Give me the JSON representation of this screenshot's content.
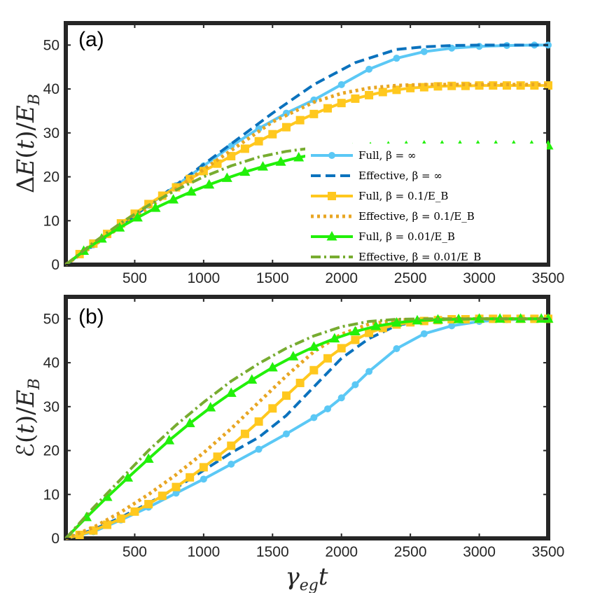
{
  "chart_data": [
    {
      "type": "line",
      "panel_label": "(a)",
      "ylabel": "ΔE(t)/E_B",
      "xlabel": "",
      "xlim": [
        0,
        3500
      ],
      "ylim": [
        0,
        55
      ],
      "xticks": [
        "500",
        "1000",
        "1500",
        "2000",
        "2500",
        "3000",
        "3500"
      ],
      "yticks": [
        "0",
        "10",
        "20",
        "30",
        "40",
        "50"
      ],
      "legend": "bottom-right",
      "series": [
        {
          "name": "Full, β = ∞",
          "color": "#5BC8F5",
          "style": "solid",
          "marker": "circle",
          "x": [
            0,
            200,
            400,
            600,
            800,
            1000,
            1200,
            1400,
            1600,
            1800,
            2000,
            2200,
            2400,
            2600,
            2800,
            3000,
            3200,
            3400,
            3500
          ],
          "y": [
            0,
            4.5,
            9,
            13.5,
            18,
            22.5,
            27,
            31,
            34.5,
            37.5,
            41,
            44.5,
            47,
            48.5,
            49.3,
            49.7,
            49.9,
            50,
            50
          ]
        },
        {
          "name": "Effective, β = ∞",
          "color": "#0B72BD",
          "style": "dash",
          "marker": "none",
          "x": [
            0,
            300,
            600,
            900,
            1200,
            1500,
            1800,
            2100,
            2400,
            2600,
            2800,
            3000,
            3300,
            3500
          ],
          "y": [
            0,
            6.5,
            13.5,
            20.5,
            27.5,
            34.5,
            41,
            46,
            49,
            49.6,
            49.9,
            50,
            50,
            50
          ]
        },
        {
          "name": "Full, β = 0.1/E_B",
          "color": "#FFC81E",
          "style": "solid",
          "marker": "square",
          "x": [
            0,
            100,
            200,
            300,
            400,
            500,
            600,
            700,
            800,
            900,
            1000,
            1100,
            1200,
            1300,
            1400,
            1500,
            1600,
            1700,
            1800,
            1900,
            2000,
            2100,
            2200,
            2300,
            2400,
            2500,
            2600,
            2700,
            2800,
            2900,
            3000,
            3100,
            3200,
            3300,
            3400,
            3500
          ],
          "y": [
            0,
            2.4,
            4.8,
            7,
            9.4,
            11.6,
            13.8,
            15.7,
            17.6,
            19.5,
            21.3,
            23,
            24.7,
            26.4,
            28.1,
            29.7,
            31.3,
            32.9,
            34.3,
            35.6,
            36.8,
            37.8,
            38.6,
            39.3,
            39.8,
            40.2,
            40.4,
            40.6,
            40.7,
            40.7,
            40.8,
            40.8,
            40.8,
            40.8,
            40.8,
            40.8
          ]
        },
        {
          "name": "Effective, β = 0.1/E_B",
          "color": "#E8A623",
          "style": "dot",
          "marker": "none",
          "x": [
            0,
            300,
            600,
            900,
            1200,
            1500,
            1800,
            2000,
            2200,
            2400,
            2600,
            2800,
            3000,
            3200,
            3500
          ],
          "y": [
            0,
            6.5,
            13,
            19.5,
            26,
            32.5,
            37,
            39,
            40.2,
            40.8,
            41,
            41,
            41,
            41,
            41
          ]
        },
        {
          "name": "Full, β = 0.01/E_B",
          "color": "#22F00A",
          "style": "solid",
          "marker": "triangle",
          "x": [
            0,
            130,
            260,
            390,
            520,
            650,
            780,
            910,
            1040,
            1170,
            1300,
            1430,
            1560,
            1690,
            1820,
            1950,
            2080,
            2210,
            2340,
            2470,
            2600,
            2730,
            2860,
            2990,
            3120,
            3250,
            3380,
            3500
          ],
          "y": [
            0,
            3.1,
            5.9,
            8.4,
            10.7,
            12.9,
            14.8,
            16.6,
            18.2,
            19.7,
            21.1,
            22.3,
            23.4,
            24.4,
            25.2,
            25.9,
            26.4,
            26.7,
            26.9,
            27,
            27.1,
            27.1,
            27.1,
            27.1,
            27.1,
            27.1,
            27.1,
            27.1
          ]
        },
        {
          "name": "Effective, β = 0.01/E_B",
          "color": "#77AC30",
          "style": "dashdot",
          "marker": "none",
          "x": [
            0,
            200,
            400,
            600,
            800,
            1000,
            1200,
            1400,
            1600,
            1800,
            2000,
            2200,
            2400,
            2700,
            3000,
            3500
          ],
          "y": [
            0,
            5,
            9.5,
            13.5,
            17,
            20,
            22.5,
            24.5,
            25.8,
            26.6,
            27,
            27.1,
            27.1,
            27.1,
            27.1,
            27.1
          ]
        }
      ]
    },
    {
      "type": "line",
      "panel_label": "(b)",
      "ylabel": "ℰ(t)/E_B",
      "xlabel": "γ_eg t",
      "xlim": [
        0,
        3500
      ],
      "ylim": [
        0,
        55
      ],
      "xticks": [
        "500",
        "1000",
        "1500",
        "2000",
        "2500",
        "3000",
        "3500"
      ],
      "yticks": [
        "0",
        "10",
        "20",
        "30",
        "40",
        "50"
      ],
      "series": [
        {
          "name": "Full, β = ∞",
          "color": "#5BC8F5",
          "style": "solid",
          "marker": "circle",
          "x": [
            0,
            200,
            400,
            600,
            800,
            1000,
            1200,
            1400,
            1600,
            1800,
            1900,
            2000,
            2100,
            2200,
            2400,
            2600,
            2800,
            3000,
            3200,
            3400,
            3500
          ],
          "y": [
            0,
            1.5,
            4.2,
            7.1,
            10.3,
            13.5,
            16.9,
            20.3,
            23.8,
            27.5,
            29.5,
            32,
            35,
            38,
            43.2,
            46.6,
            48.4,
            49.4,
            49.8,
            50,
            50
          ]
        },
        {
          "name": "Effective, β = ∞",
          "color": "#0B72BD",
          "style": "dash",
          "marker": "none",
          "x": [
            0,
            200,
            400,
            600,
            800,
            1000,
            1200,
            1400,
            1600,
            1800,
            2000,
            2200,
            2400,
            2600,
            2800,
            3000,
            3500
          ],
          "y": [
            0,
            2,
            4.8,
            8,
            11.5,
            15.5,
            19.5,
            23,
            28,
            34.5,
            41,
            45.5,
            48.5,
            49.6,
            49.9,
            50,
            50
          ]
        },
        {
          "name": "Full, β = 0.1/E_B",
          "color": "#FFC81E",
          "style": "solid",
          "marker": "square",
          "x": [
            0,
            100,
            200,
            300,
            400,
            500,
            600,
            700,
            800,
            900,
            1000,
            1100,
            1200,
            1300,
            1400,
            1500,
            1600,
            1700,
            1800,
            1900,
            2000,
            2100,
            2200,
            2300,
            2400,
            2500,
            2600,
            2700,
            2800,
            2900,
            3000,
            3100,
            3200,
            3300,
            3400,
            3500
          ],
          "y": [
            0,
            0.8,
            1.8,
            3.1,
            4.5,
            6.1,
            7.8,
            9.7,
            11.7,
            13.9,
            16.2,
            18.6,
            21.1,
            23.8,
            26.6,
            29.6,
            32.5,
            35.4,
            38.3,
            41,
            43.3,
            45.2,
            46.8,
            47.9,
            48.7,
            49.2,
            49.5,
            49.7,
            49.9,
            49.9,
            50,
            50,
            50,
            50,
            50,
            50
          ]
        },
        {
          "name": "Effective, β = 0.1/E_B",
          "color": "#E8A623",
          "style": "dot",
          "marker": "none",
          "x": [
            0,
            200,
            400,
            600,
            800,
            1000,
            1200,
            1400,
            1600,
            1800,
            2000,
            2200,
            2400,
            2600,
            2800,
            3000,
            3500
          ],
          "y": [
            0,
            2.5,
            6,
            10,
            14.5,
            19.5,
            25,
            31,
            37,
            42.5,
            46.5,
            48.8,
            49.7,
            49.9,
            50,
            50,
            50
          ]
        },
        {
          "name": "Full, β = 0.01/E_B",
          "color": "#22F00A",
          "style": "solid",
          "marker": "triangle",
          "x": [
            0,
            150,
            300,
            450,
            600,
            750,
            900,
            1050,
            1200,
            1350,
            1500,
            1650,
            1800,
            1950,
            2100,
            2250,
            2400,
            2550,
            2700,
            2850,
            3000,
            3150,
            3300,
            3450,
            3500
          ],
          "y": [
            0,
            4.8,
            9.4,
            13.8,
            18.1,
            22.3,
            26.2,
            29.8,
            33.1,
            36.1,
            38.9,
            41.4,
            43.6,
            45.5,
            47.1,
            48.3,
            49.1,
            49.6,
            49.8,
            49.9,
            50,
            50,
            50,
            50,
            50
          ]
        },
        {
          "name": "Effective, β = 0.01/E_B",
          "color": "#77AC30",
          "style": "dashdot",
          "marker": "none",
          "x": [
            0,
            200,
            400,
            600,
            800,
            1000,
            1200,
            1400,
            1600,
            1800,
            2000,
            2200,
            2400,
            2600,
            3000,
            3500
          ],
          "y": [
            0,
            7,
            13.5,
            20,
            25.8,
            31,
            35.8,
            39.8,
            43.3,
            46.1,
            48.2,
            49.4,
            49.9,
            50,
            50,
            50
          ]
        }
      ]
    }
  ]
}
